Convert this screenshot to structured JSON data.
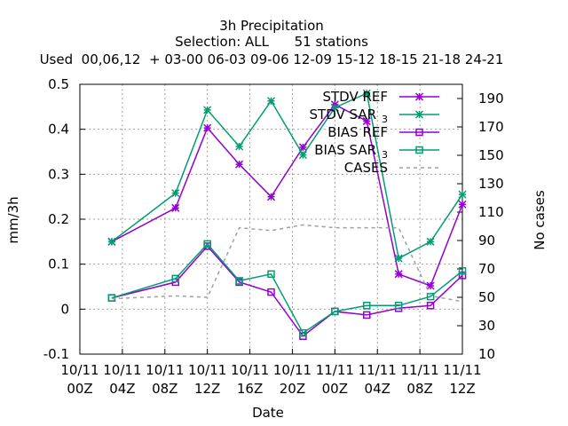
{
  "chart_data": {
    "type": "line",
    "title": "3h Precipitation",
    "subtitle": "Selection: ALL      51 stations",
    "subtitle2": "Used  00,06,12  + 03-00 06-03 09-06 12-09 15-12 18-15 21-18 24-21",
    "xlabel": "Date",
    "ylabel": "mm/3h",
    "y2label": "No cases",
    "x_tick_labels": [
      [
        "10/11",
        "00Z"
      ],
      [
        "10/11",
        "04Z"
      ],
      [
        "10/11",
        "08Z"
      ],
      [
        "10/11",
        "12Z"
      ],
      [
        "10/11",
        "16Z"
      ],
      [
        "10/11",
        "20Z"
      ],
      [
        "11/11",
        "00Z"
      ],
      [
        "11/11",
        "04Z"
      ],
      [
        "11/11",
        "08Z"
      ],
      [
        "11/11",
        "12Z"
      ]
    ],
    "x_range_hours": [
      0,
      36
    ],
    "ylim": [
      -0.1,
      0.5
    ],
    "y_ticks": [
      -0.1,
      0,
      0.1,
      0.2,
      0.3,
      0.4,
      0.5
    ],
    "y2lim": [
      10,
      200
    ],
    "y2_ticks": [
      10,
      30,
      50,
      70,
      90,
      110,
      130,
      150,
      170,
      190
    ],
    "grid": true,
    "legend_position": "top-right",
    "x_hours": [
      3,
      9,
      12,
      15,
      18,
      21,
      24,
      27,
      30,
      33,
      36
    ],
    "series": [
      {
        "name": "STDV REF",
        "legend_label": "STDV REF",
        "axis": "y",
        "color": "#9400d3",
        "marker": "x",
        "values": [
          0.15,
          0.225,
          0.403,
          0.322,
          0.25,
          0.36,
          0.455,
          0.418,
          0.078,
          0.052,
          0.233
        ]
      },
      {
        "name": "STDV SAR_3",
        "legend_label": "STDV SAR",
        "legend_sub": "3",
        "axis": "y",
        "color": "#009e73",
        "marker": "x",
        "values": [
          0.15,
          0.258,
          0.443,
          0.362,
          0.463,
          0.343,
          0.448,
          0.48,
          0.113,
          0.15,
          0.255
        ]
      },
      {
        "name": "BIAS REF",
        "legend_label": "BIAS REF",
        "axis": "y",
        "color": "#9400d3",
        "marker": "square",
        "values": [
          0.025,
          0.06,
          0.14,
          0.06,
          0.038,
          -0.06,
          -0.005,
          -0.013,
          0.002,
          0.008,
          0.075
        ]
      },
      {
        "name": "BIAS SAR_3",
        "legend_label": "BIAS SAR",
        "legend_sub": "3",
        "axis": "y",
        "color": "#009e73",
        "marker": "square",
        "values": [
          0.025,
          0.068,
          0.145,
          0.063,
          0.078,
          -0.053,
          -0.005,
          0.008,
          0.008,
          0.028,
          0.085
        ]
      },
      {
        "name": "CASES",
        "legend_label": "CASES",
        "axis": "y2",
        "color": "#a0a0a0",
        "marker": "none",
        "dashed": true,
        "values": [
          49,
          51,
          50,
          99,
          97,
          101,
          99,
          99,
          99,
          51,
          47
        ]
      }
    ]
  }
}
